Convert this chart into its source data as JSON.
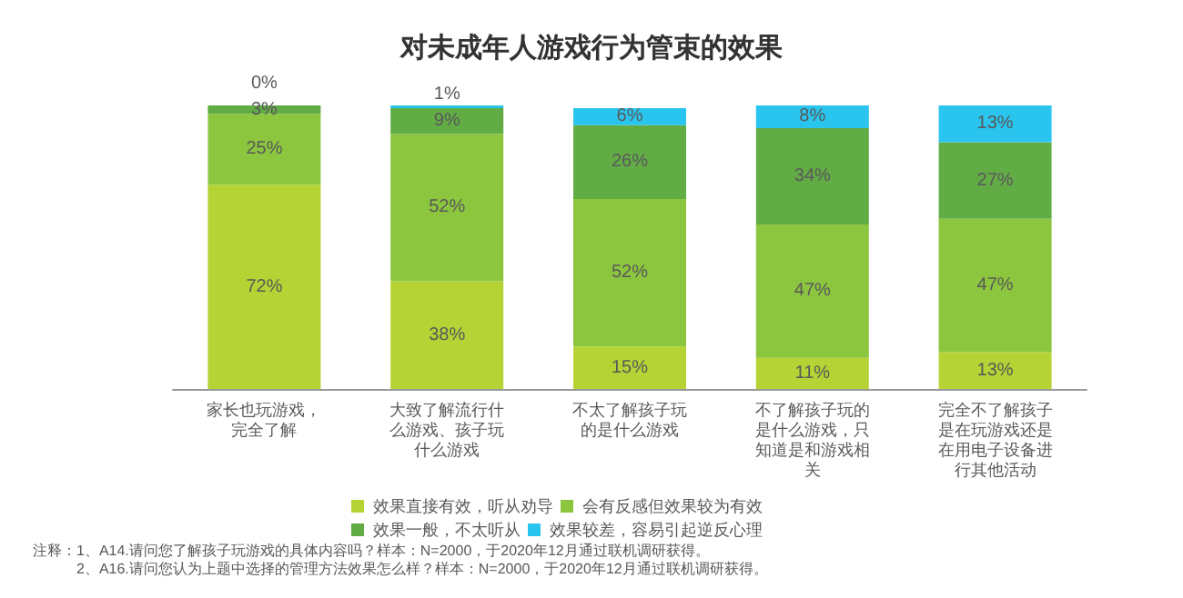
{
  "chart_data": {
    "type": "bar",
    "title": "对未成年人游戏行为管束的效果",
    "stacked": true,
    "legend": "bottom",
    "categories": [
      "家长也玩游戏，完全了解",
      "大致了解流行什么游戏、孩子玩什么游戏",
      "不太了解孩子玩的是什么游戏",
      "不了解孩子玩的是什么游戏，只知道是和游戏相关",
      "完全不了解孩子是在玩游戏还是在用电子设备进行其他活动"
    ],
    "series": [
      {
        "name": "效果直接有效，听从劝导",
        "color": "#b5d334",
        "values": [
          72,
          38,
          15,
          11,
          13
        ],
        "value_labels": [
          "72%",
          "38%",
          "15%",
          "11%",
          "13%"
        ]
      },
      {
        "name": "会有反感但效果较为有效",
        "color": "#8cc63f",
        "values": [
          25,
          52,
          52,
          47,
          47
        ],
        "value_labels": [
          "25%",
          "52%",
          "52%",
          "47%",
          "47%"
        ]
      },
      {
        "name": "效果一般，不太听从",
        "color": "#62ac46",
        "values": [
          3,
          9,
          26,
          34,
          27
        ],
        "value_labels": [
          "3%",
          "9%",
          "26%",
          "34%",
          "27%"
        ]
      },
      {
        "name": "效果较差，容易引起逆反心理",
        "color": "#29c5ee",
        "values": [
          0,
          1,
          6,
          8,
          13
        ],
        "value_labels": [
          "0%",
          "1%",
          "6%",
          "8%",
          "13%"
        ]
      }
    ],
    "annotations": [
      "注释：1、A14.请问您了解孩子玩游戏的具体内容吗？样本：N=2000，于2020年12月通过联机调研获得。",
      "2、A16.请问您认为上题中选择的管理方法效果怎么样？样本：N=2000，于2020年12月通过联机调研获得。"
    ]
  }
}
